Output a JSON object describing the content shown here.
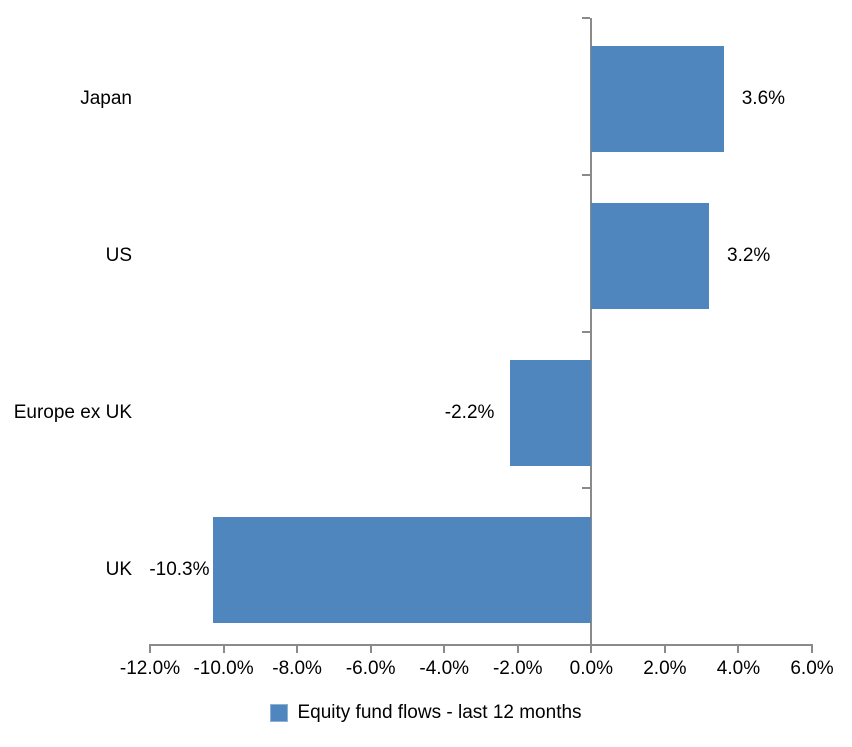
{
  "chart_data": {
    "type": "bar",
    "orientation": "horizontal",
    "title": "",
    "categories": [
      "Japan",
      "US",
      "Europe ex UK",
      "UK"
    ],
    "series": [
      {
        "name": "Equity fund flows - last 12 months",
        "values": [
          3.6,
          3.2,
          -2.2,
          -10.3
        ]
      }
    ],
    "data_labels": [
      "3.6%",
      "3.2%",
      "-2.2%",
      "-10.3%"
    ],
    "xlabel": "",
    "ylabel": "",
    "xlim": [
      -12,
      6
    ],
    "xticks": [
      -12,
      -10,
      -8,
      -6,
      -4,
      -2,
      0,
      2,
      4,
      6
    ],
    "xtick_labels": [
      "-12.0%",
      "-10.0%",
      "-8.0%",
      "-6.0%",
      "-4.0%",
      "-2.0%",
      "0.0%",
      "2.0%",
      "4.0%",
      "6.0%"
    ],
    "grid": false,
    "legend": "Equity fund flows - last 12 months",
    "legend_position": "bottom",
    "colors": {
      "bar": "#4E86BD",
      "legend_swatch_border": "#8DB0D3",
      "axis": "#8A8A8A",
      "text": "#000000",
      "background": "#FFFFFF"
    }
  }
}
